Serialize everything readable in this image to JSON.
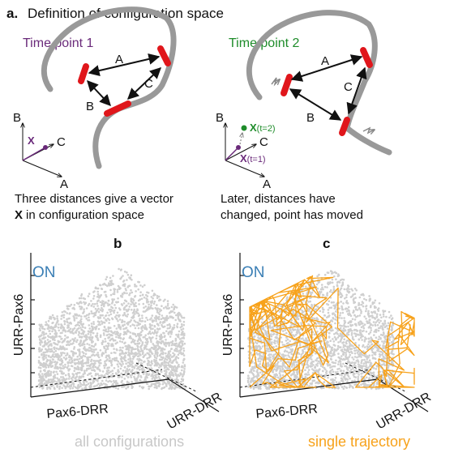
{
  "panel_a": {
    "label": "a.",
    "title": "Definition of configuration space",
    "left": {
      "time_label": "Time point 1",
      "distances": [
        "A",
        "B",
        "C"
      ],
      "axes": [
        "B",
        "C",
        "A"
      ],
      "vector": "X",
      "caption_line1": "Three distances give a vector",
      "caption_vector": "X",
      "caption_line2": "in configuration space"
    },
    "right": {
      "time_label": "Time point 2",
      "distances": [
        "A",
        "C",
        "B"
      ],
      "axes": [
        "B",
        "C",
        "A"
      ],
      "vector_t1": "X",
      "vector_t1_sub": "(t=1)",
      "vector_t2": "X",
      "vector_t2_sub": "(t=2)",
      "caption_line1": "Later, distances have",
      "caption_line2": "changed, point has moved"
    }
  },
  "panel_b": {
    "label": "b",
    "state": "ON",
    "y_axis": "URR-Pax6",
    "x_axis": "Pax6-DRR",
    "z_axis": "URR-DRR",
    "caption": "all configurations"
  },
  "panel_c": {
    "label": "c",
    "state": "ON",
    "y_axis": "URR-Pax6",
    "x_axis": "Pax6-DRR",
    "z_axis": "URR-DRR",
    "caption": "single trajectory"
  }
}
